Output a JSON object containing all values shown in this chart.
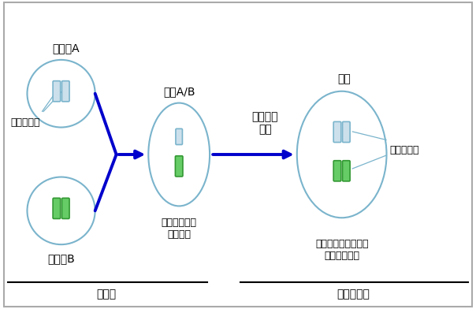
{
  "fig_bg": "#ffffff",
  "title_A": "祖先種A",
  "title_B": "祖先種B",
  "title_hybrid": "雑種A/B",
  "title_new": "新種",
  "label_homologous": "相同染色体",
  "label_homeologous": "同祖染色体",
  "label_unstable": "不稔で子孫が\n残せない",
  "label_stable": "精子や卵子を作り、\n子孫が残せる",
  "label_diploid": "二倍体",
  "label_polyploid": "異質四倍体",
  "label_wgd": "全ゲノム\n重複",
  "ellipse_color": "#7ab4cc",
  "chr_white_color": "#cce0ec",
  "chr_white_border": "#7ab4cc",
  "chr_green_color": "#66cc66",
  "chr_green_border": "#339933",
  "arrow_color": "#0000cc",
  "font_size_title": 10,
  "font_size_label": 9,
  "font_size_bottom": 10
}
